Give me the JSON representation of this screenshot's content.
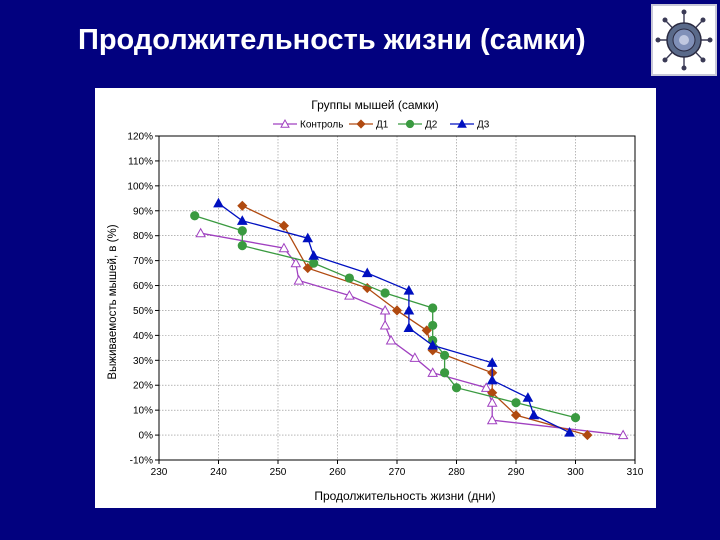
{
  "slide": {
    "title": "Продолжительность жизни (самки)"
  },
  "logo": {
    "icon": "virus-emblem-icon"
  },
  "chart_data": {
    "type": "line",
    "title": "Группы мышей (самки)",
    "xlabel": "Продолжительность жизни (дни)",
    "ylabel": "Выживаемость мышей, в (%)",
    "xlim": [
      230,
      310
    ],
    "ylim": [
      -10,
      120
    ],
    "x_ticks": [
      230,
      240,
      250,
      260,
      270,
      280,
      290,
      300,
      310
    ],
    "y_ticks": [
      -10,
      0,
      10,
      20,
      30,
      40,
      50,
      60,
      70,
      80,
      90,
      100,
      110,
      120
    ],
    "y_tick_labels": [
      "-10%",
      "0%",
      "10%",
      "20%",
      "30%",
      "40%",
      "50%",
      "60%",
      "70%",
      "80%",
      "90%",
      "100%",
      "110%",
      "120%"
    ],
    "grid": true,
    "legend_position": "top-center",
    "series": [
      {
        "name": "Контроль",
        "color": "#a040c0",
        "marker": "triangle-open",
        "points": [
          [
            237,
            81
          ],
          [
            251,
            75
          ],
          [
            253,
            69
          ],
          [
            253.5,
            62
          ],
          [
            262,
            56
          ],
          [
            268,
            50
          ],
          [
            268,
            44
          ],
          [
            269,
            38
          ],
          [
            273,
            31
          ],
          [
            276,
            25
          ],
          [
            285,
            19
          ],
          [
            286,
            13
          ],
          [
            286,
            6
          ],
          [
            308,
            0
          ]
        ]
      },
      {
        "name": "Д1",
        "color": "#b04a10",
        "marker": "diamond",
        "points": [
          [
            244,
            92
          ],
          [
            251,
            84
          ],
          [
            255,
            67
          ],
          [
            265,
            59
          ],
          [
            270,
            50
          ],
          [
            275,
            42
          ],
          [
            276,
            34
          ],
          [
            286,
            25
          ],
          [
            286,
            17
          ],
          [
            290,
            8
          ],
          [
            302,
            0
          ]
        ]
      },
      {
        "name": "Д2",
        "color": "#3a9a40",
        "marker": "circle",
        "points": [
          [
            236,
            88
          ],
          [
            244,
            82
          ],
          [
            244,
            76
          ],
          [
            256,
            69
          ],
          [
            262,
            63
          ],
          [
            268,
            57
          ],
          [
            276,
            51
          ],
          [
            276,
            44
          ],
          [
            276,
            38
          ],
          [
            278,
            32
          ],
          [
            278,
            25
          ],
          [
            280,
            19
          ],
          [
            290,
            13
          ],
          [
            300,
            7
          ]
        ]
      },
      {
        "name": "Д3",
        "color": "#0010c0",
        "marker": "triangle",
        "points": [
          [
            240,
            93
          ],
          [
            244,
            86
          ],
          [
            255,
            79
          ],
          [
            256,
            72
          ],
          [
            265,
            65
          ],
          [
            272,
            58
          ],
          [
            272,
            50
          ],
          [
            272,
            43
          ],
          [
            276,
            36
          ],
          [
            286,
            29
          ],
          [
            286,
            22
          ],
          [
            292,
            15
          ],
          [
            293,
            8
          ],
          [
            299,
            1
          ]
        ]
      }
    ]
  }
}
